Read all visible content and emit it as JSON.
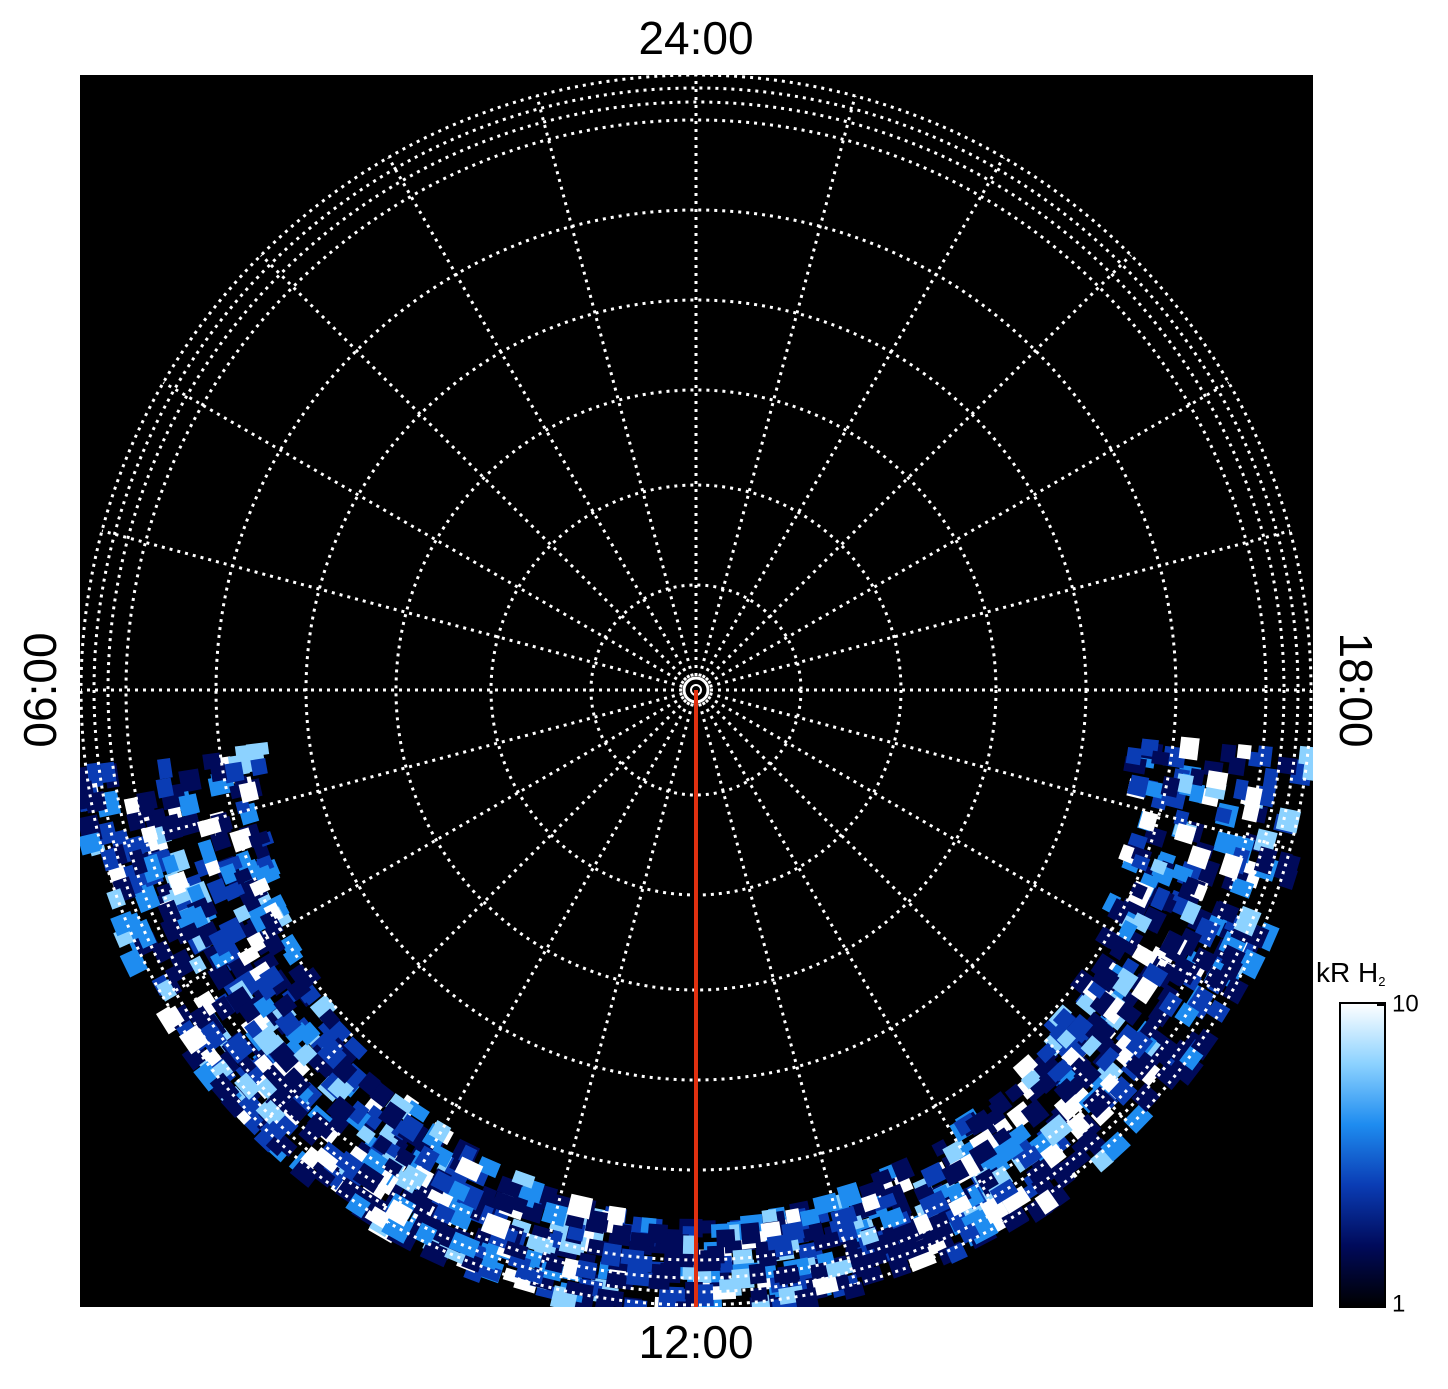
{
  "chart_data": {
    "type": "polar-map",
    "hour_labels": {
      "top": "24:00",
      "bottom": "12:00",
      "left": "06:00",
      "right": "18:00"
    },
    "colorbar": {
      "label": "kR H",
      "label_subscript": "2",
      "lim": [
        1,
        10
      ],
      "ticks": [
        1,
        10
      ],
      "log": true,
      "colors": [
        "#000000",
        "#000a5a",
        "#0a3cb4",
        "#1e8cf0",
        "#8cd2ff",
        "#ffffff"
      ]
    },
    "meridian_color": "#e03010",
    "grid": true
  }
}
